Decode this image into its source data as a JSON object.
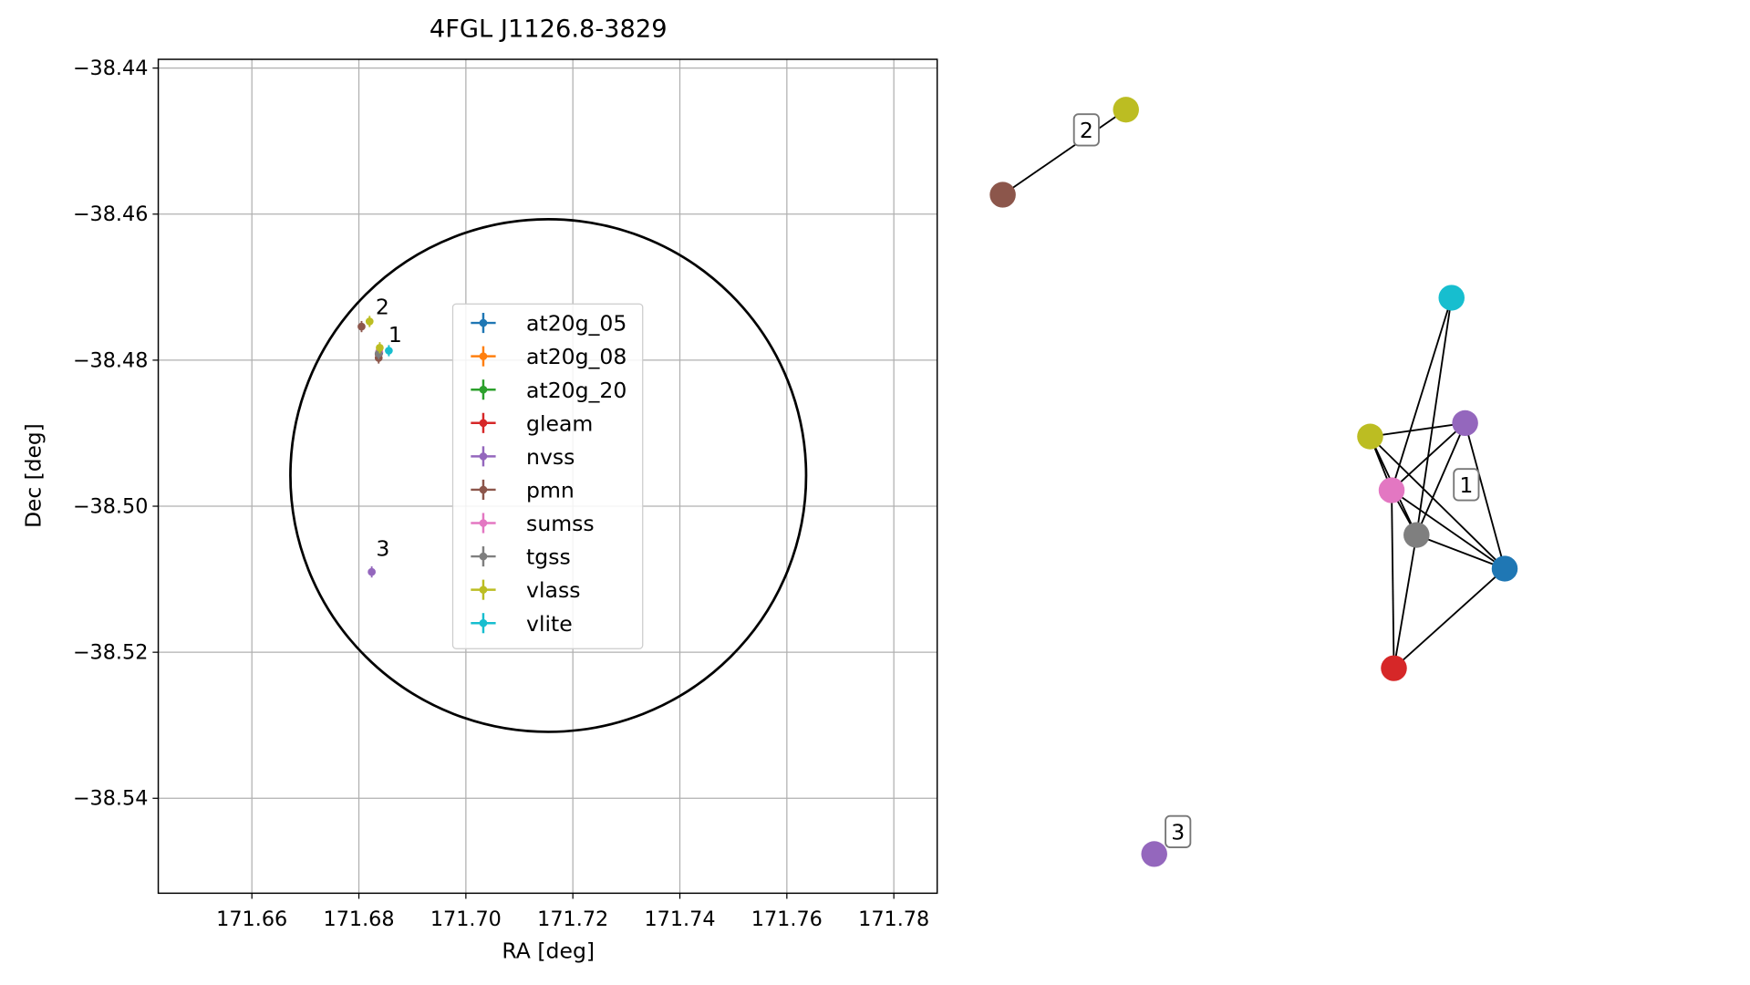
{
  "chart_data": {
    "type": "scatter",
    "title": "4FGL J1126.8-3829",
    "x_label": "RA [deg]",
    "y_label": "Dec [deg]",
    "xlim": [
      171.6425,
      171.7881
    ],
    "ylim": [
      -38.553,
      -38.4388
    ],
    "xticks": [
      171.66,
      171.68,
      {
        "value": 171.7,
        "label": "171.70"
      },
      171.72,
      171.74,
      171.76,
      171.78
    ],
    "yticks": [
      {
        "value": -38.44,
        "label": "−38.44"
      },
      {
        "value": -38.46,
        "label": "−38.46"
      },
      {
        "value": -38.48,
        "label": "−38.48"
      },
      {
        "value": -38.5,
        "label": "−38.50"
      },
      {
        "value": -38.52,
        "label": "−38.52"
      },
      {
        "value": -38.54,
        "label": "−38.54"
      }
    ],
    "grid": true,
    "legend_loc": "center",
    "series": [
      {
        "name": "at20g_05",
        "color": "#1f77b4",
        "ra": [
          171.6838
        ],
        "dec": [
          -38.479
        ]
      },
      {
        "name": "at20g_08",
        "color": "#ff7f0e",
        "ra": [],
        "dec": []
      },
      {
        "name": "at20g_20",
        "color": "#2ca02c",
        "ra": [],
        "dec": []
      },
      {
        "name": "gleam",
        "color": "#d62728",
        "ra": [
          171.6837
        ],
        "dec": [
          -38.4792
        ]
      },
      {
        "name": "nvss",
        "color": "#9467bd",
        "ra": [
          171.6824
        ],
        "dec": [
          -38.509
        ]
      },
      {
        "name": "pmn",
        "color": "#8c564b",
        "ra": [
          171.6805,
          171.6837
        ],
        "dec": [
          -38.4754,
          -38.4797
        ]
      },
      {
        "name": "sumss",
        "color": "#e377c2",
        "ra": [
          171.6838
        ],
        "dec": [
          -38.4788
        ]
      },
      {
        "name": "tgss",
        "color": "#7f7f7f",
        "ra": [
          171.6837
        ],
        "dec": [
          -38.4791
        ]
      },
      {
        "name": "vlass",
        "color": "#bcbd22",
        "ra": [
          171.682,
          171.6839
        ],
        "dec": [
          -38.4747,
          -38.4783
        ]
      },
      {
        "name": "vlite",
        "color": "#17becf",
        "ra": [
          171.6856
        ],
        "dec": [
          -38.4787
        ]
      }
    ],
    "annotations": [
      {
        "text": "2",
        "ra": 171.6844,
        "dec": -38.4737
      },
      {
        "text": "1",
        "ra": 171.6868,
        "dec": -38.4775
      },
      {
        "text": "3",
        "ra": 171.6845,
        "dec": -38.5068
      }
    ],
    "region": {
      "ra": 171.7154,
      "dec": -38.4958,
      "ra_radius": 0.0482,
      "dec_radius": 0.0351
    }
  },
  "graph": {
    "nodes": [
      {
        "color": "#8c564b"
      },
      {
        "color": "#bcbd22"
      },
      {
        "color": "#17becf"
      },
      {
        "color": "#9467bd"
      },
      {
        "color": "#bcbd22"
      },
      {
        "color": "#e377c2"
      },
      {
        "color": "#7f7f7f"
      },
      {
        "color": "#1f77b4"
      },
      {
        "color": "#d62728"
      },
      {
        "color": "#9467bd"
      }
    ],
    "edges": [
      [
        0,
        1
      ],
      [
        2,
        5
      ],
      [
        2,
        6
      ],
      [
        4,
        3
      ],
      [
        4,
        6
      ],
      [
        4,
        7
      ],
      [
        4,
        5
      ],
      [
        3,
        5
      ],
      [
        3,
        6
      ],
      [
        3,
        7
      ],
      [
        5,
        7
      ],
      [
        5,
        8
      ],
      [
        5,
        6
      ],
      [
        6,
        7
      ],
      [
        6,
        8
      ],
      [
        8,
        7
      ]
    ],
    "labels": [
      "1",
      "2",
      "3"
    ]
  }
}
